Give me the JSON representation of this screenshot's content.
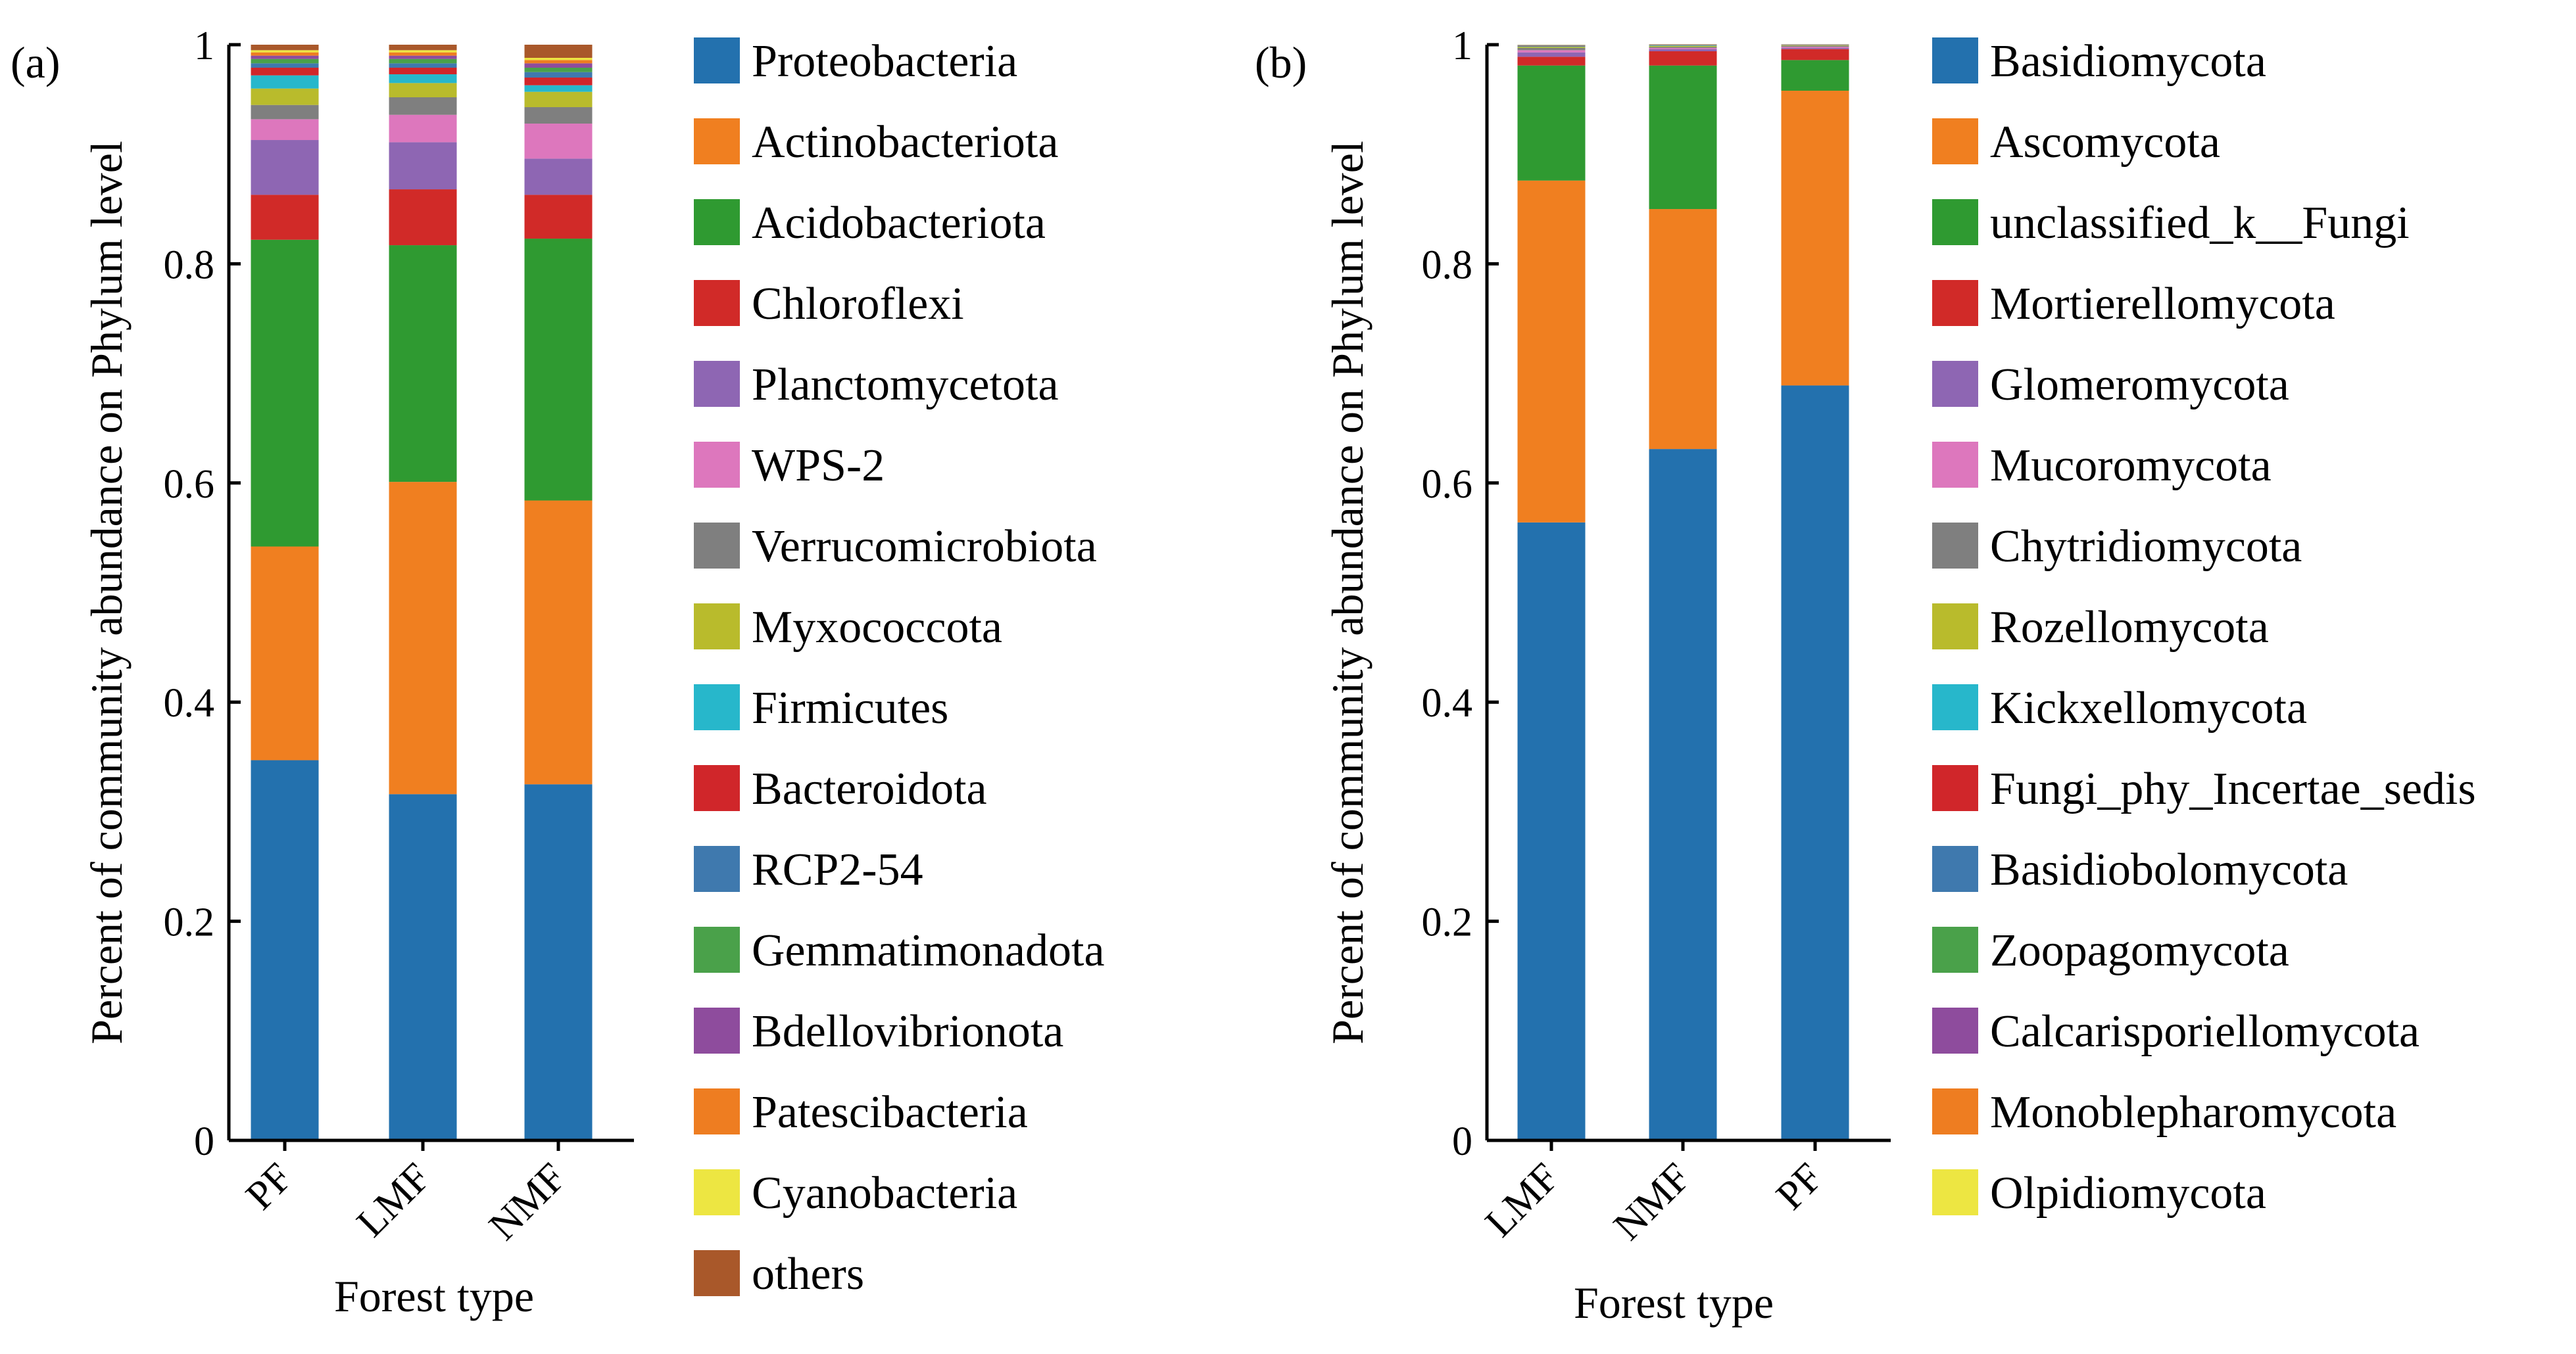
{
  "chart_data": [
    {
      "type": "bar",
      "stacked": true,
      "panel_label": "(a)",
      "xlabel": "Forest type",
      "ylabel": "Percent of community abundance on Phylum level",
      "ylim": [
        0,
        1
      ],
      "y_ticks": [
        "0",
        "0.2",
        "0.4",
        "0.6",
        "0.8",
        "1"
      ],
      "categories": [
        "PF",
        "LMF",
        "NMF"
      ],
      "series": [
        {
          "name": "Proteobacteria",
          "color": "#2371AE",
          "values": [
            0.347,
            0.316,
            0.325
          ]
        },
        {
          "name": "Actinobacteriota",
          "color": "#F07F20",
          "values": [
            0.195,
            0.285,
            0.259
          ]
        },
        {
          "name": "Acidobacteriota",
          "color": "#2F9A31",
          "values": [
            0.28,
            0.216,
            0.239
          ]
        },
        {
          "name": "Chloroflexi",
          "color": "#D12A28",
          "values": [
            0.041,
            0.051,
            0.04
          ]
        },
        {
          "name": "Planctomycetota",
          "color": "#8E66B3",
          "values": [
            0.05,
            0.043,
            0.033
          ]
        },
        {
          "name": "WPS-2",
          "color": "#DD77BD",
          "values": [
            0.019,
            0.025,
            0.032
          ]
        },
        {
          "name": "Verrucomicrobiota",
          "color": "#7F7F7F",
          "values": [
            0.013,
            0.016,
            0.015
          ]
        },
        {
          "name": "Myxococcota",
          "color": "#B9BB2C",
          "values": [
            0.015,
            0.013,
            0.014
          ]
        },
        {
          "name": "Firmicutes",
          "color": "#27B7CB",
          "values": [
            0.012,
            0.008,
            0.006
          ]
        },
        {
          "name": "Bacteroidota",
          "color": "#D0262A",
          "values": [
            0.007,
            0.006,
            0.007
          ]
        },
        {
          "name": "RCP2-54",
          "color": "#3F79AE",
          "values": [
            0.004,
            0.004,
            0.005
          ]
        },
        {
          "name": "Gemmatimonadota",
          "color": "#4AA14A",
          "values": [
            0.004,
            0.004,
            0.004
          ]
        },
        {
          "name": "Bdellovibrionota",
          "color": "#8E4C9D",
          "values": [
            0.003,
            0.003,
            0.004
          ]
        },
        {
          "name": "Patescibacteria",
          "color": "#EE7D21",
          "values": [
            0.003,
            0.003,
            0.003
          ]
        },
        {
          "name": "Cyanobacteria",
          "color": "#EDE642",
          "values": [
            0.002,
            0.002,
            0.002
          ]
        },
        {
          "name": "others",
          "color": "#A9582A",
          "values": [
            0.005,
            0.005,
            0.012
          ]
        }
      ]
    },
    {
      "type": "bar",
      "stacked": true,
      "panel_label": "(b)",
      "xlabel": "Forest type",
      "ylabel": "Percent of community abundance on Phylum level",
      "ylim": [
        0,
        1
      ],
      "y_ticks": [
        "0",
        "0.2",
        "0.4",
        "0.6",
        "0.8",
        "1"
      ],
      "categories": [
        "LMF",
        "NMF",
        "PF"
      ],
      "series": [
        {
          "name": "Basidiomycota",
          "color": "#2371AE",
          "values": [
            0.564,
            0.631,
            0.689
          ]
        },
        {
          "name": "Ascomycota",
          "color": "#F07F20",
          "values": [
            0.312,
            0.219,
            0.269
          ]
        },
        {
          "name": "unclassified_k__Fungi",
          "color": "#2F9A31",
          "values": [
            0.105,
            0.131,
            0.028
          ]
        },
        {
          "name": "Mortierellomycota",
          "color": "#D12A28",
          "values": [
            0.008,
            0.013,
            0.01
          ]
        },
        {
          "name": "Glomeromycota",
          "color": "#8E66B3",
          "values": [
            0.004,
            0.002,
            0.001
          ]
        },
        {
          "name": "Mucoromycota",
          "color": "#DD77BD",
          "values": [
            0.002,
            0.001,
            0.001
          ]
        },
        {
          "name": "Chytridiomycota",
          "color": "#7F7F7F",
          "values": [
            0.002,
            0.001,
            0.001
          ]
        },
        {
          "name": "Rozellomycota",
          "color": "#B9BB2C",
          "values": [
            0.001,
            0.001,
            0.0005
          ]
        },
        {
          "name": "Kickxellomycota",
          "color": "#27B7CB",
          "values": [
            0.0005,
            0.0005,
            0.0003
          ]
        },
        {
          "name": "Fungi_phy_Incertae_sedis",
          "color": "#D0262A",
          "values": [
            0.0005,
            0.0003,
            0.0002
          ]
        },
        {
          "name": "Basidiobolomycota",
          "color": "#3F79AE",
          "values": [
            0.0003,
            0.0002,
            0.0001
          ]
        },
        {
          "name": "Zoopagomycota",
          "color": "#4AA14A",
          "values": [
            0.0003,
            0.0002,
            0.0001
          ]
        },
        {
          "name": "Calcarisporiellomycota",
          "color": "#8E4C9D",
          "values": [
            0.0002,
            0.0001,
            0.0001
          ]
        },
        {
          "name": "Monoblepharomycota",
          "color": "#EE7D21",
          "values": [
            0.0001,
            0.0001,
            0.0001
          ]
        },
        {
          "name": "Olpidiomycota",
          "color": "#EDE642",
          "values": [
            0.0001,
            0.0001,
            0.0001
          ]
        }
      ]
    }
  ]
}
